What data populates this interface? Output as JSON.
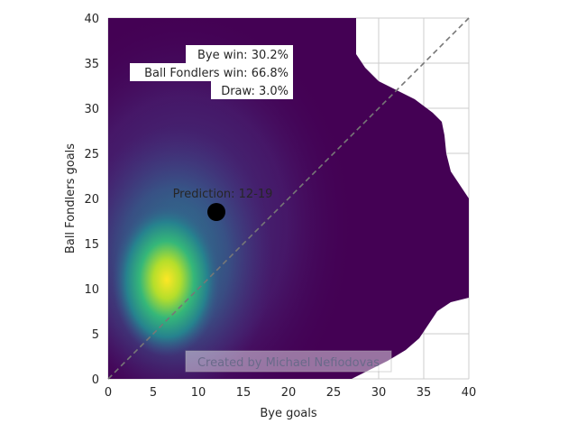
{
  "chart_data": {
    "type": "heatmap",
    "subtype": "kde-density",
    "xlabel": "Bye goals",
    "ylabel": "Ball Fondlers goals",
    "xlim": [
      0,
      40
    ],
    "ylim": [
      0,
      40
    ],
    "xticks": [
      "0",
      "5",
      "10",
      "15",
      "20",
      "25",
      "30",
      "35",
      "40"
    ],
    "yticks": [
      "0",
      "5",
      "10",
      "15",
      "20",
      "25",
      "30",
      "35",
      "40"
    ],
    "grid": true,
    "colormap": "viridis",
    "density_peak": {
      "x": 6.5,
      "y": 11
    },
    "diagonal": {
      "from": [
        0,
        0
      ],
      "to": [
        40,
        40
      ],
      "style": "dashed"
    },
    "probabilities": [
      {
        "label": "Bye win: 30.2%",
        "value": 30.2
      },
      {
        "label": "Ball Fondlers win: 66.8%",
        "value": 66.8
      },
      {
        "label": "Draw: 3.0%",
        "value": 3.0
      }
    ],
    "prediction": {
      "label": "Prediction: 12-19",
      "x": 12,
      "y": 18.5
    },
    "watermark": "Created by Michael Nefiodovas"
  },
  "colors": {
    "background": "#440154",
    "prediction_marker": "#000000",
    "grid": "#cccccc",
    "diagonal": "#777777"
  }
}
